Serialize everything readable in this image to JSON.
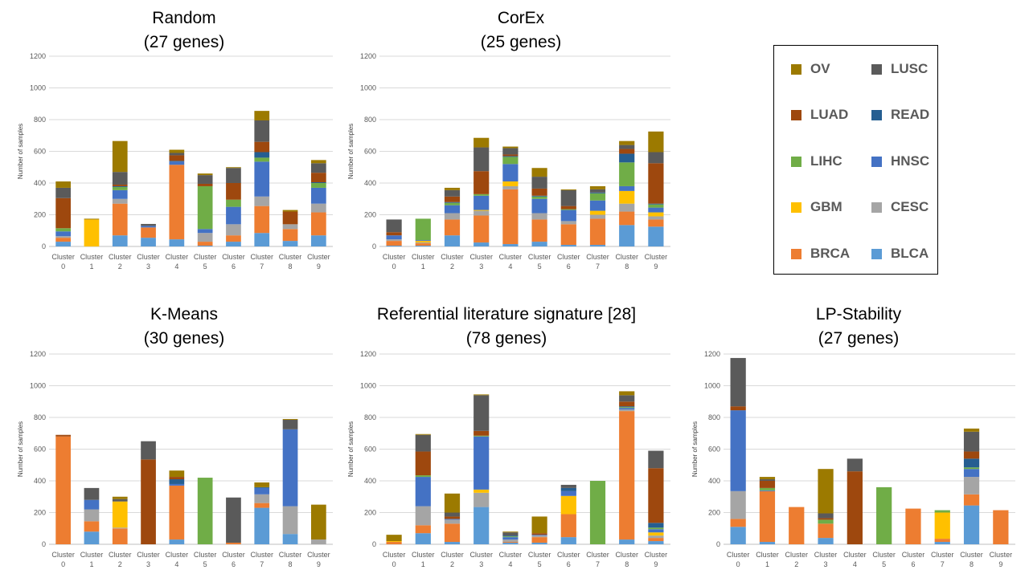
{
  "legend": {
    "items": [
      {
        "name": "OV",
        "color": "#9c7a00"
      },
      {
        "name": "LUSC",
        "color": "#5a5a5a"
      },
      {
        "name": "LUAD",
        "color": "#9e480e"
      },
      {
        "name": "READ",
        "color": "#255e91"
      },
      {
        "name": "LIHC",
        "color": "#70ad47"
      },
      {
        "name": "HNSC",
        "color": "#4472c4"
      },
      {
        "name": "GBM",
        "color": "#ffc000"
      },
      {
        "name": "CESC",
        "color": "#a5a5a5"
      },
      {
        "name": "BRCA",
        "color": "#ed7d31"
      },
      {
        "name": "BLCA",
        "color": "#5b9bd5"
      }
    ]
  },
  "chart_data": [
    {
      "type": "bar",
      "stacked": true,
      "title_line1": "Random",
      "title_line2": "(27 genes)",
      "ylabel": "Number of samples",
      "ylim": [
        0,
        1200
      ],
      "yticks": [
        "0",
        "200",
        "400",
        "600",
        "800",
        "1000",
        "1200"
      ],
      "categories": [
        "Cluster 0",
        "Cluster 1",
        "Cluster 2",
        "Cluster 3",
        "Cluster 4",
        "Cluster 5",
        "Cluster 6",
        "Cluster 7",
        "Cluster 8",
        "Cluster 9"
      ],
      "series": [
        {
          "name": "BLCA",
          "values": [
            30,
            0,
            70,
            55,
            45,
            5,
            30,
            85,
            35,
            70
          ]
        },
        {
          "name": "BRCA",
          "values": [
            25,
            0,
            200,
            65,
            470,
            25,
            40,
            170,
            75,
            145
          ]
        },
        {
          "name": "CESC",
          "values": [
            10,
            0,
            30,
            0,
            0,
            55,
            70,
            60,
            30,
            55
          ]
        },
        {
          "name": "GBM",
          "values": [
            0,
            170,
            0,
            0,
            0,
            0,
            0,
            0,
            0,
            0
          ]
        },
        {
          "name": "HNSC",
          "values": [
            30,
            0,
            55,
            10,
            20,
            25,
            110,
            220,
            0,
            100
          ]
        },
        {
          "name": "LIHC",
          "values": [
            20,
            0,
            20,
            0,
            0,
            270,
            45,
            25,
            0,
            30
          ]
        },
        {
          "name": "READ",
          "values": [
            0,
            0,
            5,
            0,
            5,
            0,
            0,
            35,
            0,
            5
          ]
        },
        {
          "name": "LUAD",
          "values": [
            190,
            0,
            10,
            0,
            35,
            15,
            105,
            65,
            80,
            60
          ]
        },
        {
          "name": "LUSC",
          "values": [
            65,
            0,
            80,
            12,
            15,
            55,
            95,
            135,
            0,
            60
          ]
        },
        {
          "name": "OV",
          "values": [
            40,
            5,
            195,
            0,
            20,
            10,
            5,
            60,
            10,
            20
          ]
        }
      ]
    },
    {
      "type": "bar",
      "stacked": true,
      "title_line1": "CorEx",
      "title_line2": "(25 genes)",
      "ylabel": "Number of samples",
      "ylim": [
        0,
        1200
      ],
      "yticks": [
        "0",
        "200",
        "400",
        "600",
        "800",
        "1000",
        "1200"
      ],
      "categories": [
        "Cluster 0",
        "Cluster 1",
        "Cluster 2",
        "Cluster 3",
        "Cluster 4",
        "Cluster 5",
        "Cluster 6",
        "Cluster 7",
        "Cluster 8",
        "Cluster 9"
      ],
      "series": [
        {
          "name": "BLCA",
          "values": [
            5,
            5,
            70,
            25,
            15,
            30,
            10,
            10,
            135,
            125
          ]
        },
        {
          "name": "BRCA",
          "values": [
            30,
            15,
            100,
            170,
            345,
            140,
            130,
            165,
            85,
            45
          ]
        },
        {
          "name": "CESC",
          "values": [
            10,
            5,
            40,
            30,
            20,
            40,
            20,
            25,
            50,
            20
          ]
        },
        {
          "name": "GBM",
          "values": [
            0,
            10,
            0,
            5,
            30,
            0,
            0,
            25,
            80,
            25
          ]
        },
        {
          "name": "HNSC",
          "values": [
            25,
            5,
            50,
            90,
            110,
            90,
            70,
            65,
            30,
            30
          ]
        },
        {
          "name": "LIHC",
          "values": [
            0,
            135,
            15,
            10,
            45,
            15,
            5,
            45,
            150,
            20
          ]
        },
        {
          "name": "READ",
          "values": [
            0,
            0,
            5,
            0,
            5,
            5,
            0,
            5,
            55,
            5
          ]
        },
        {
          "name": "LUAD",
          "values": [
            20,
            0,
            35,
            145,
            10,
            45,
            20,
            0,
            30,
            255
          ]
        },
        {
          "name": "LUSC",
          "values": [
            80,
            0,
            40,
            150,
            40,
            75,
            100,
            20,
            25,
            70
          ]
        },
        {
          "name": "OV",
          "values": [
            0,
            0,
            15,
            60,
            10,
            55,
            5,
            20,
            25,
            130
          ]
        }
      ]
    },
    {
      "type": "bar",
      "stacked": true,
      "title_line1": "K-Means",
      "title_line2": "(30 genes)",
      "ylabel": "Number of samples",
      "ylim": [
        0,
        1200
      ],
      "yticks": [
        "0",
        "200",
        "400",
        "600",
        "800",
        "1000",
        "1200"
      ],
      "categories": [
        "Cluster 0",
        "Cluster 1",
        "Cluster 2",
        "Cluster 3",
        "Cluster 4",
        "Cluster 5",
        "Cluster 6",
        "Cluster 7",
        "Cluster 8",
        "Cluster 9"
      ],
      "series": [
        {
          "name": "BLCA",
          "values": [
            0,
            80,
            0,
            0,
            30,
            0,
            0,
            230,
            65,
            0
          ]
        },
        {
          "name": "BRCA",
          "values": [
            680,
            65,
            100,
            0,
            340,
            0,
            10,
            30,
            0,
            0
          ]
        },
        {
          "name": "CESC",
          "values": [
            0,
            75,
            5,
            0,
            0,
            0,
            0,
            55,
            175,
            30
          ]
        },
        {
          "name": "GBM",
          "values": [
            0,
            0,
            165,
            0,
            0,
            0,
            0,
            0,
            0,
            0
          ]
        },
        {
          "name": "HNSC",
          "values": [
            0,
            60,
            0,
            0,
            10,
            0,
            0,
            40,
            485,
            0
          ]
        },
        {
          "name": "LIHC",
          "values": [
            0,
            0,
            0,
            0,
            0,
            420,
            0,
            0,
            0,
            0
          ]
        },
        {
          "name": "READ",
          "values": [
            0,
            0,
            0,
            0,
            30,
            0,
            0,
            5,
            0,
            0
          ]
        },
        {
          "name": "LUAD",
          "values": [
            10,
            0,
            0,
            535,
            15,
            0,
            0,
            0,
            0,
            0
          ]
        },
        {
          "name": "LUSC",
          "values": [
            0,
            75,
            15,
            115,
            0,
            0,
            285,
            0,
            60,
            0
          ]
        },
        {
          "name": "OV",
          "values": [
            0,
            0,
            15,
            0,
            40,
            0,
            0,
            30,
            5,
            220
          ]
        }
      ]
    },
    {
      "type": "bar",
      "stacked": true,
      "title_line1": "Referential literature signature [28]",
      "title_line2": "(78 genes)",
      "ylabel": "Number of samples",
      "ylim": [
        0,
        1200
      ],
      "yticks": [
        "0",
        "200",
        "400",
        "600",
        "800",
        "1000",
        "1200"
      ],
      "categories": [
        "Cluster 0",
        "Cluster 1",
        "Cluster 2",
        "Cluster 3",
        "Cluster 4",
        "Cluster 5",
        "Cluster 6",
        "Cluster 7",
        "Cluster 8",
        "Cluster 9"
      ],
      "series": [
        {
          "name": "BLCA",
          "values": [
            0,
            70,
            15,
            235,
            10,
            10,
            45,
            0,
            30,
            20
          ]
        },
        {
          "name": "BRCA",
          "values": [
            15,
            50,
            115,
            0,
            5,
            35,
            145,
            0,
            810,
            20
          ]
        },
        {
          "name": "CESC",
          "values": [
            0,
            120,
            25,
            90,
            15,
            10,
            0,
            0,
            10,
            15
          ]
        },
        {
          "name": "GBM",
          "values": [
            5,
            0,
            0,
            20,
            0,
            0,
            115,
            0,
            0,
            20
          ]
        },
        {
          "name": "HNSC",
          "values": [
            0,
            185,
            5,
            335,
            15,
            5,
            30,
            0,
            10,
            20
          ]
        },
        {
          "name": "LIHC",
          "values": [
            0,
            10,
            0,
            5,
            5,
            0,
            0,
            400,
            5,
            10
          ]
        },
        {
          "name": "READ",
          "values": [
            0,
            0,
            0,
            0,
            5,
            0,
            20,
            0,
            5,
            30
          ]
        },
        {
          "name": "LUAD",
          "values": [
            0,
            150,
            15,
            30,
            0,
            10,
            0,
            0,
            30,
            345
          ]
        },
        {
          "name": "LUSC",
          "values": [
            0,
            105,
            25,
            225,
            20,
            0,
            20,
            0,
            40,
            110
          ]
        },
        {
          "name": "OV",
          "values": [
            40,
            5,
            120,
            5,
            5,
            105,
            0,
            0,
            25,
            0
          ]
        }
      ]
    },
    {
      "type": "bar",
      "stacked": true,
      "title_line1": "LP-Stability",
      "title_line2": "(27 genes)",
      "ylabel": "Number of samples",
      "ylim": [
        0,
        1200
      ],
      "yticks": [
        "0",
        "200",
        "400",
        "600",
        "800",
        "1000",
        "1200"
      ],
      "categories": [
        "Cluster 0",
        "Cluster 1",
        "Cluster 2",
        "Cluster 3",
        "Cluster 4",
        "Cluster 5",
        "Cluster 6",
        "Cluster 7",
        "Cluster 8",
        "Cluster 9"
      ],
      "series": [
        {
          "name": "BLCA",
          "values": [
            110,
            15,
            0,
            40,
            0,
            0,
            0,
            15,
            245,
            0
          ]
        },
        {
          "name": "BRCA",
          "values": [
            50,
            320,
            235,
            90,
            0,
            0,
            225,
            20,
            70,
            215
          ]
        },
        {
          "name": "CESC",
          "values": [
            175,
            0,
            0,
            0,
            0,
            0,
            0,
            0,
            110,
            0
          ]
        },
        {
          "name": "GBM",
          "values": [
            0,
            0,
            0,
            0,
            0,
            0,
            0,
            165,
            0,
            0
          ]
        },
        {
          "name": "HNSC",
          "values": [
            510,
            5,
            0,
            0,
            0,
            0,
            0,
            0,
            50,
            0
          ]
        },
        {
          "name": "LIHC",
          "values": [
            0,
            15,
            0,
            25,
            0,
            360,
            0,
            15,
            10,
            0
          ]
        },
        {
          "name": "READ",
          "values": [
            0,
            0,
            0,
            0,
            0,
            0,
            0,
            0,
            55,
            0
          ]
        },
        {
          "name": "LUAD",
          "values": [
            25,
            45,
            0,
            10,
            460,
            0,
            0,
            0,
            45,
            0
          ]
        },
        {
          "name": "LUSC",
          "values": [
            305,
            10,
            0,
            30,
            80,
            0,
            0,
            0,
            125,
            0
          ]
        },
        {
          "name": "OV",
          "values": [
            0,
            15,
            0,
            280,
            0,
            0,
            0,
            0,
            20,
            0
          ]
        }
      ]
    }
  ]
}
